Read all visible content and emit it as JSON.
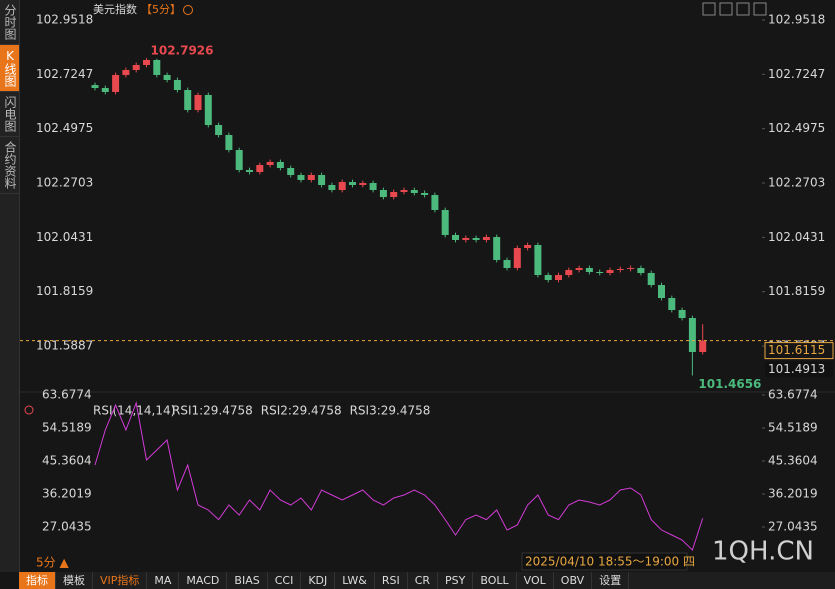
{
  "sidebar": [
    "分时图",
    "K线图",
    "闪电图",
    "合约资料"
  ],
  "chart_data": [
    {
      "type": "candlestick",
      "title": "美元指数",
      "period": "【5分】",
      "ylim": [
        101.4468,
        102.9518
      ],
      "yticks": [
        101.5887,
        101.8159,
        102.0431,
        102.2703,
        102.4975,
        102.7247,
        102.9518
      ],
      "up_color": "#e8494f",
      "down_color": "#4cb97d",
      "ohlc": [
        [
          102.68,
          102.69,
          102.6575,
          102.6675
        ],
        [
          102.6675,
          102.6775,
          102.6408,
          102.6508
        ],
        [
          102.6508,
          102.7319,
          102.6408,
          102.7219
        ],
        [
          102.7219,
          102.7528,
          102.7119,
          102.7428
        ],
        [
          102.7428,
          102.7737,
          102.7328,
          102.7637
        ],
        [
          102.7637,
          102.7926,
          102.7537,
          102.7846
        ],
        [
          102.7846,
          102.79,
          102.7119,
          102.7219
        ],
        [
          102.7219,
          102.7319,
          102.691,
          102.701
        ],
        [
          102.701,
          102.711,
          102.6492,
          102.6592
        ],
        [
          102.6592,
          102.6692,
          102.5655,
          102.5755
        ],
        [
          102.5755,
          102.6483,
          102.5655,
          102.6383
        ],
        [
          102.6383,
          102.6483,
          102.5028,
          102.5128
        ],
        [
          102.5128,
          102.5228,
          102.461,
          102.471
        ],
        [
          102.471,
          102.481,
          102.3983,
          102.4083
        ],
        [
          102.4083,
          102.4183,
          102.3147,
          102.3247
        ],
        [
          102.3247,
          102.3347,
          102.3063,
          102.3163
        ],
        [
          102.3163,
          102.3556,
          102.3063,
          102.3456
        ],
        [
          102.3456,
          102.3682,
          102.3356,
          102.3582
        ],
        [
          102.3582,
          102.3682,
          102.3231,
          102.3331
        ],
        [
          102.3331,
          102.3431,
          102.2938,
          102.3038
        ],
        [
          102.3038,
          102.3138,
          102.2729,
          102.2829
        ],
        [
          102.2829,
          102.3138,
          102.2729,
          102.3038
        ],
        [
          102.3038,
          102.3138,
          102.252,
          102.262
        ],
        [
          102.262,
          102.272,
          102.2311,
          102.2411
        ],
        [
          102.2411,
          102.2845,
          102.2311,
          102.2745
        ],
        [
          102.2745,
          102.2845,
          102.252,
          102.262
        ],
        [
          102.262,
          102.2804,
          102.252,
          102.2704
        ],
        [
          102.2704,
          102.2804,
          102.2311,
          102.2411
        ],
        [
          102.2411,
          102.2511,
          102.2018,
          102.2118
        ],
        [
          102.2118,
          102.2427,
          102.2018,
          102.2327
        ],
        [
          102.2327,
          102.2511,
          102.2227,
          102.2411
        ],
        [
          102.2411,
          102.2511,
          102.2186,
          102.2286
        ],
        [
          102.2286,
          102.2386,
          102.2102,
          102.2202
        ],
        [
          102.2202,
          102.2302,
          102.1475,
          102.1575
        ],
        [
          102.1575,
          102.1675,
          102.043,
          102.053
        ],
        [
          102.053,
          102.063,
          102.0221,
          102.0321
        ],
        [
          102.0321,
          102.0504,
          102.0221,
          102.0404
        ],
        [
          102.0404,
          102.0504,
          102.0221,
          102.0321
        ],
        [
          102.0321,
          102.0546,
          102.0221,
          102.0446
        ],
        [
          102.0446,
          102.0546,
          101.9385,
          101.9485
        ],
        [
          101.9485,
          101.9585,
          101.905,
          101.915
        ],
        [
          101.915,
          102.0086,
          101.905,
          101.9986
        ],
        [
          101.9986,
          102.0212,
          101.9886,
          102.0112
        ],
        [
          102.0112,
          102.0212,
          101.8757,
          101.8857
        ],
        [
          101.8857,
          101.8957,
          101.8548,
          101.8648
        ],
        [
          101.8648,
          101.8957,
          101.8548,
          101.8857
        ],
        [
          101.8857,
          101.9166,
          101.8757,
          101.9066
        ],
        [
          101.9066,
          101.925,
          101.8966,
          101.915
        ],
        [
          101.915,
          101.925,
          101.8883,
          101.8983
        ],
        [
          101.8983,
          101.9083,
          101.8841,
          101.8941
        ],
        [
          101.8941,
          101.9166,
          101.8841,
          101.9066
        ],
        [
          101.9066,
          101.9208,
          101.8966,
          101.9108
        ],
        [
          101.9108,
          101.925,
          101.9008,
          101.915
        ],
        [
          101.915,
          101.925,
          101.8841,
          101.8941
        ],
        [
          101.8941,
          101.9041,
          101.8339,
          101.8439
        ],
        [
          101.8439,
          101.8539,
          101.7796,
          101.7896
        ],
        [
          101.7896,
          101.7996,
          101.7294,
          101.7394
        ],
        [
          101.7394,
          101.7494,
          101.696,
          101.706
        ],
        [
          101.706,
          101.716,
          101.4656,
          101.5638
        ],
        [
          101.5638,
          101.68,
          101.5538,
          101.6115
        ]
      ],
      "max_label": 102.7926,
      "min_label": 101.4656,
      "last_price": 101.6115,
      "ref_price": 101.4913
    },
    {
      "type": "line",
      "title": "RSI(14,14,14)",
      "ylim": [
        19.2774,
        65.065
      ],
      "yticks": [
        27.0435,
        36.2019,
        45.3604,
        54.5189,
        63.6774
      ],
      "series": [
        {
          "name": "RSI1:29.4758",
          "color": "#dddddd"
        },
        {
          "name": "RSI2:29.4758",
          "color": "#e6d84a"
        },
        {
          "name": "RSI3:29.4758",
          "color": "#d23bd6",
          "values": [
            44.25,
            53.97,
            60.9,
            53.97,
            61.46,
            45.64,
            48.42,
            51.19,
            37.31,
            44.25,
            33.15,
            31.77,
            29.09,
            33.15,
            30.38,
            34.54,
            31.77,
            37.31,
            34.54,
            33.15,
            35.09,
            31.77,
            37.31,
            35.93,
            34.54,
            35.93,
            37.31,
            34.54,
            33.15,
            35.09,
            35.93,
            37.31,
            35.93,
            33.15,
            29.09,
            24.83,
            29.09,
            30.38,
            29.09,
            31.77,
            26.21,
            27.6,
            33.15,
            35.93,
            30.38,
            29.09,
            33.15,
            34.54,
            33.99,
            33.15,
            34.54,
            37.31,
            37.87,
            35.93,
            29.09,
            26.21,
            24.83,
            23.44,
            20.66,
            29.4758
          ]
        }
      ]
    }
  ],
  "period_switch": "5分 ▲",
  "time_range": "2025/04/10 18:55～19:00 四",
  "watermark": "1QH.CN",
  "toolbar": [
    "指标",
    "模板",
    "VIP指标",
    "MA",
    "MACD",
    "BIAS",
    "CCI",
    "KDJ",
    "LW&",
    "RSI",
    "CR",
    "PSY",
    "BOLL",
    "VOL",
    "OBV",
    "设置"
  ]
}
